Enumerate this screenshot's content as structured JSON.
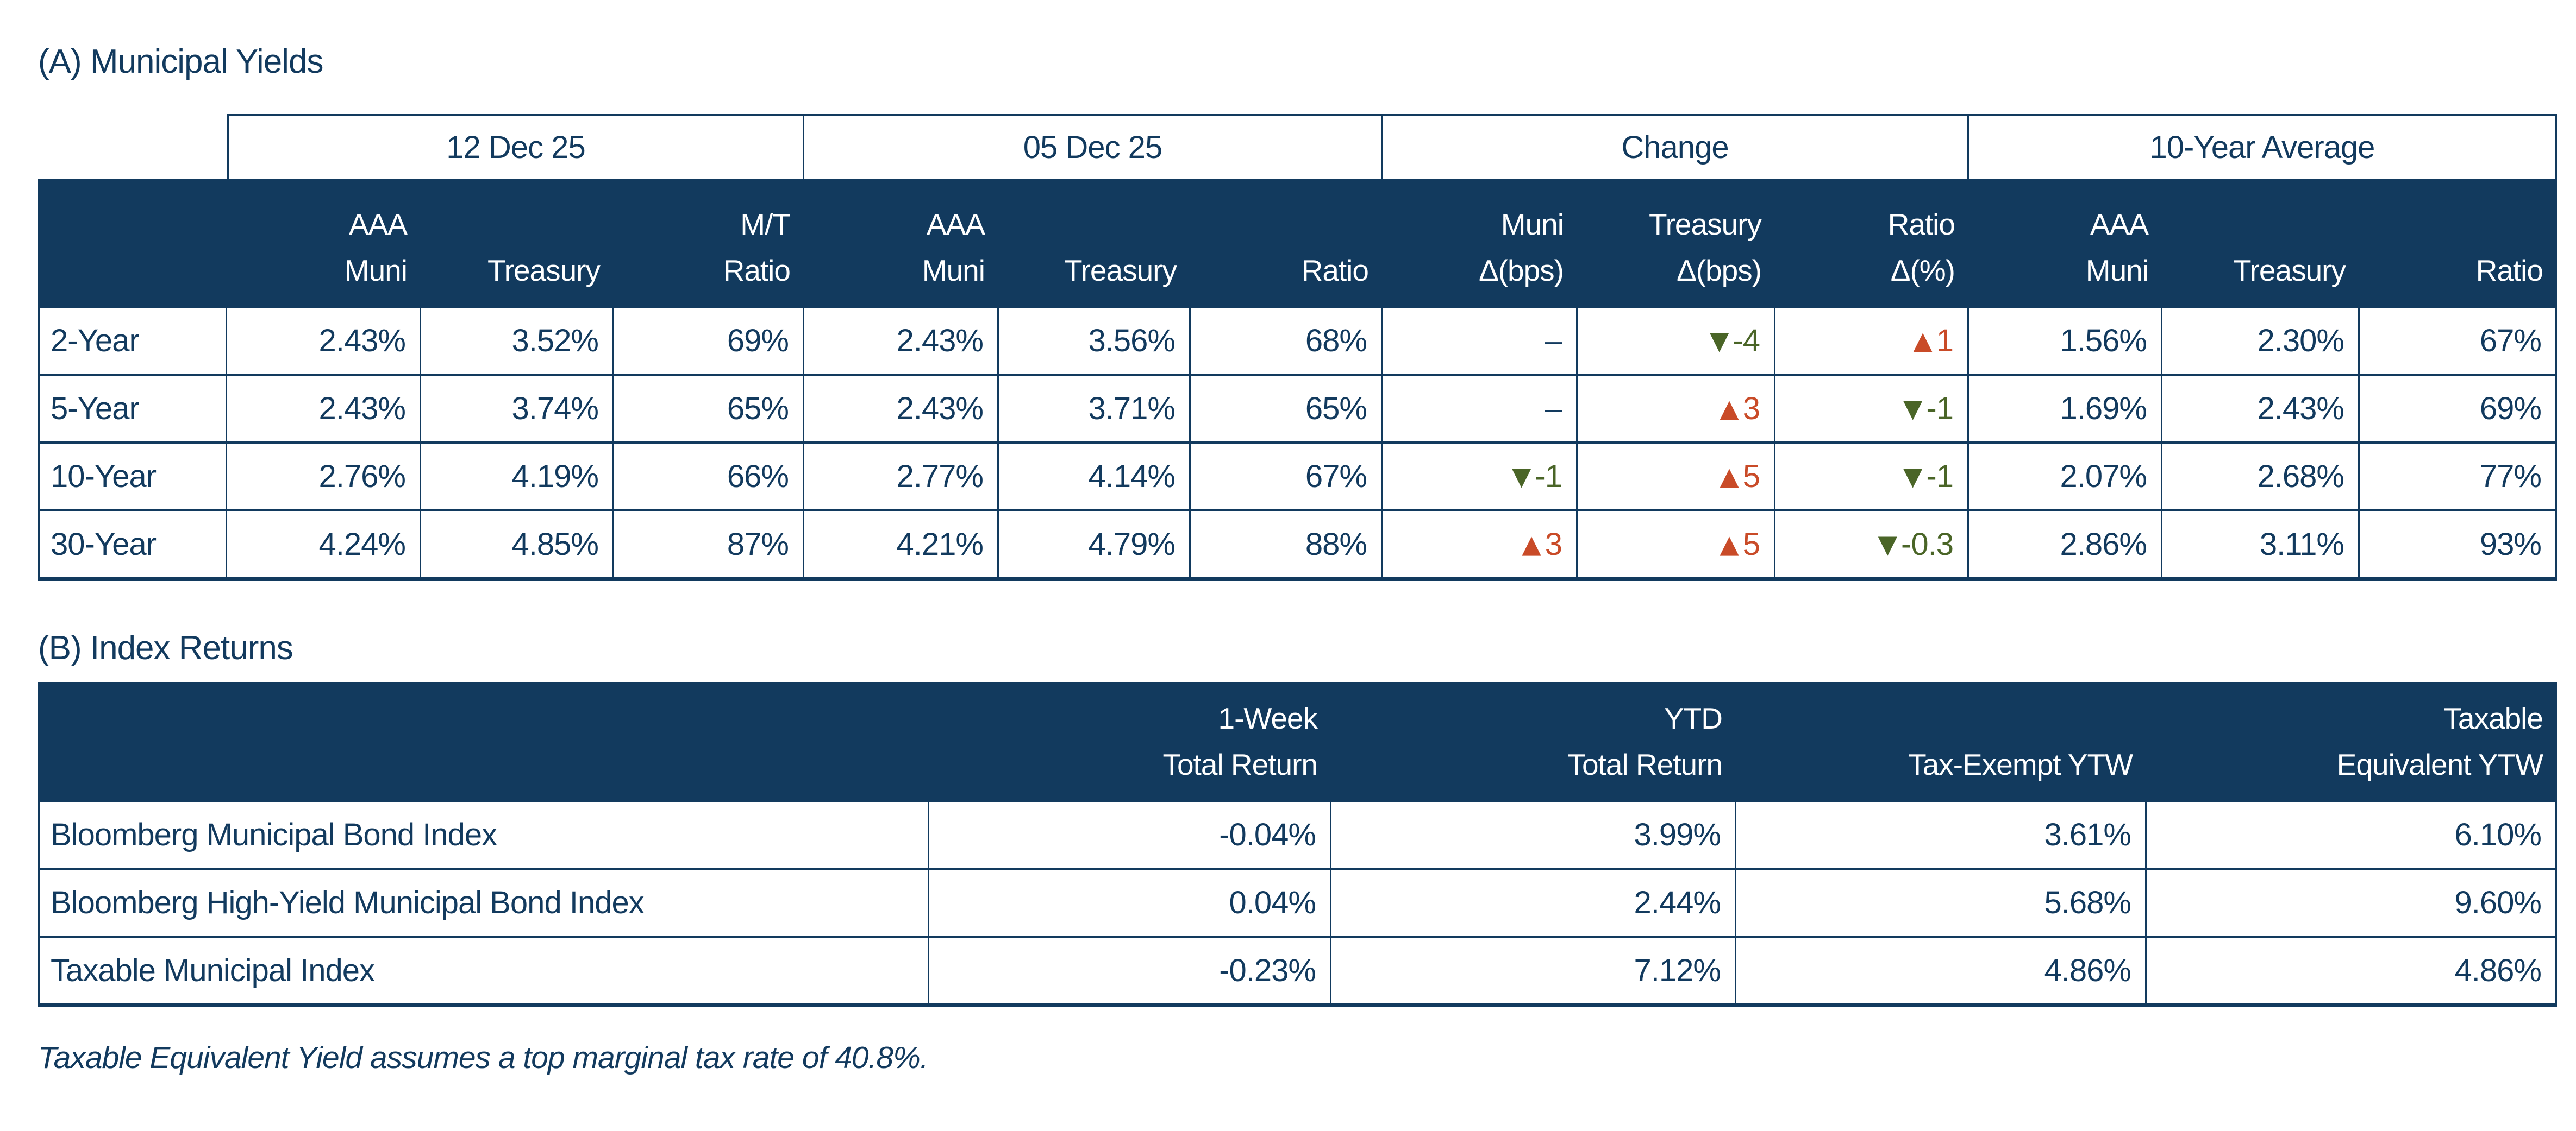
{
  "colors": {
    "navy": "#123A5E",
    "header_bg": "#123A5E",
    "header_text": "#FFFFFF",
    "up": "#C94B28",
    "down": "#4A6527",
    "background": "#FFFFFF"
  },
  "indicator_icons": {
    "up": "▲",
    "down": "▼"
  },
  "section_a": {
    "title": "(A) Municipal Yields",
    "group_headers": [
      "12 Dec 25",
      "05 Dec 25",
      "Change",
      "10-Year Average"
    ],
    "column_headers": [
      {
        "line1": "AAA",
        "line2": "Muni"
      },
      {
        "line1": "",
        "line2": "Treasury"
      },
      {
        "line1": "M/T",
        "line2": "Ratio"
      },
      {
        "line1": "AAA",
        "line2": "Muni"
      },
      {
        "line1": "",
        "line2": "Treasury"
      },
      {
        "line1": "",
        "line2": "Ratio"
      },
      {
        "line1": "Muni",
        "line2": "Δ(bps)"
      },
      {
        "line1": "Treasury",
        "line2": "Δ(bps)"
      },
      {
        "line1": "Ratio",
        "line2": "Δ(%)"
      },
      {
        "line1": "AAA",
        "line2": "Muni"
      },
      {
        "line1": "",
        "line2": "Treasury"
      },
      {
        "line1": "",
        "line2": "Ratio"
      }
    ],
    "rows": [
      {
        "label": "2-Year",
        "cells": [
          {
            "v": "2.43%"
          },
          {
            "v": "3.52%"
          },
          {
            "v": "69%"
          },
          {
            "v": "2.43%"
          },
          {
            "v": "3.56%"
          },
          {
            "v": "68%"
          },
          {
            "v": "–"
          },
          {
            "v": "-4",
            "dir": "down"
          },
          {
            "v": "1",
            "dir": "up"
          },
          {
            "v": "1.56%"
          },
          {
            "v": "2.30%"
          },
          {
            "v": "67%"
          }
        ]
      },
      {
        "label": "5-Year",
        "cells": [
          {
            "v": "2.43%"
          },
          {
            "v": "3.74%"
          },
          {
            "v": "65%"
          },
          {
            "v": "2.43%"
          },
          {
            "v": "3.71%"
          },
          {
            "v": "65%"
          },
          {
            "v": "–"
          },
          {
            "v": "3",
            "dir": "up"
          },
          {
            "v": "-1",
            "dir": "down"
          },
          {
            "v": "1.69%"
          },
          {
            "v": "2.43%"
          },
          {
            "v": "69%"
          }
        ]
      },
      {
        "label": "10-Year",
        "cells": [
          {
            "v": "2.76%"
          },
          {
            "v": "4.19%"
          },
          {
            "v": "66%"
          },
          {
            "v": "2.77%"
          },
          {
            "v": "4.14%"
          },
          {
            "v": "67%"
          },
          {
            "v": "-1",
            "dir": "down"
          },
          {
            "v": "5",
            "dir": "up"
          },
          {
            "v": "-1",
            "dir": "down"
          },
          {
            "v": "2.07%"
          },
          {
            "v": "2.68%"
          },
          {
            "v": "77%"
          }
        ]
      },
      {
        "label": "30-Year",
        "cells": [
          {
            "v": "4.24%"
          },
          {
            "v": "4.85%"
          },
          {
            "v": "87%"
          },
          {
            "v": "4.21%"
          },
          {
            "v": "4.79%"
          },
          {
            "v": "88%"
          },
          {
            "v": "3",
            "dir": "up"
          },
          {
            "v": "5",
            "dir": "up"
          },
          {
            "v": "-0.3",
            "dir": "down"
          },
          {
            "v": "2.86%"
          },
          {
            "v": "3.11%"
          },
          {
            "v": "93%"
          }
        ]
      }
    ]
  },
  "section_b": {
    "title": "(B) Index Returns",
    "column_headers": [
      {
        "line1": "1-Week",
        "line2": "Total Return"
      },
      {
        "line1": "YTD",
        "line2": "Total Return"
      },
      {
        "line1": "",
        "line2": "Tax-Exempt YTW"
      },
      {
        "line1": "Taxable",
        "line2": "Equivalent YTW"
      }
    ],
    "rows": [
      {
        "label": "Bloomberg Municipal Bond Index",
        "cells": [
          {
            "v": "-0.04%"
          },
          {
            "v": "3.99%"
          },
          {
            "v": "3.61%"
          },
          {
            "v": "6.10%"
          }
        ]
      },
      {
        "label": "Bloomberg High-Yield Municipal Bond Index",
        "cells": [
          {
            "v": "0.04%"
          },
          {
            "v": "2.44%"
          },
          {
            "v": "5.68%"
          },
          {
            "v": "9.60%"
          }
        ]
      },
      {
        "label": "Taxable Municipal Index",
        "cells": [
          {
            "v": "-0.23%"
          },
          {
            "v": "7.12%"
          },
          {
            "v": "4.86%"
          },
          {
            "v": "4.86%"
          }
        ]
      }
    ]
  },
  "footnote": "Taxable Equivalent Yield assumes a top marginal tax rate of 40.8%."
}
